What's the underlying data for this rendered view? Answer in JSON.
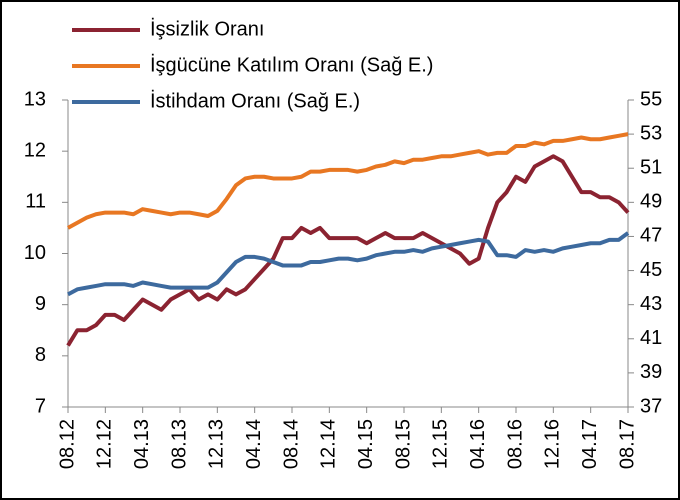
{
  "chart_data": {
    "type": "line",
    "categories": [
      "08.12",
      null,
      null,
      null,
      "12.12",
      null,
      null,
      null,
      "04.13",
      null,
      null,
      null,
      "08.13",
      null,
      null,
      null,
      "12.13",
      null,
      null,
      null,
      "04.14",
      null,
      null,
      null,
      "08.14",
      null,
      null,
      null,
      "12.14",
      null,
      null,
      null,
      "04.15",
      null,
      null,
      null,
      "08.15",
      null,
      null,
      null,
      "12.15",
      null,
      null,
      null,
      "04.16",
      null,
      null,
      null,
      "08.16",
      null,
      null,
      null,
      "12.16",
      null,
      null,
      null,
      "04.17",
      null,
      null,
      null,
      "08.17"
    ],
    "series": [
      {
        "name": "İşsizlik Oranı",
        "color": "#8b2331",
        "values": [
          8.2,
          8.5,
          8.5,
          8.6,
          8.8,
          8.8,
          8.7,
          8.9,
          9.1,
          9.0,
          8.9,
          9.1,
          9.2,
          9.3,
          9.1,
          9.2,
          9.1,
          9.3,
          9.2,
          9.3,
          9.5,
          9.7,
          9.9,
          10.3,
          10.3,
          10.5,
          10.4,
          10.5,
          10.3,
          10.3,
          10.3,
          10.3,
          10.2,
          10.3,
          10.4,
          10.3,
          10.3,
          10.3,
          10.4,
          10.3,
          10.2,
          10.1,
          10.0,
          9.8,
          9.9,
          10.5,
          11.0,
          11.2,
          11.5,
          11.4,
          11.7,
          11.8,
          11.9,
          11.8,
          11.5,
          11.2,
          11.2,
          11.1,
          11.1,
          11.0,
          10.8
        ]
      },
      {
        "name": "İşgücüne Katılım Oranı (Sağ E.)",
        "color": "#e87722",
        "axis": "y2",
        "values": [
          47.5,
          47.8,
          48.1,
          48.3,
          48.4,
          48.4,
          48.4,
          48.3,
          48.6,
          48.5,
          48.4,
          48.3,
          48.4,
          48.4,
          48.3,
          48.2,
          48.5,
          49.2,
          50.0,
          50.4,
          50.5,
          50.5,
          50.4,
          50.4,
          50.4,
          50.5,
          50.8,
          50.8,
          50.9,
          50.9,
          50.9,
          50.8,
          50.9,
          51.1,
          51.2,
          51.4,
          51.3,
          51.5,
          51.5,
          51.6,
          51.7,
          51.7,
          51.8,
          51.9,
          52.0,
          51.8,
          51.9,
          51.9,
          52.3,
          52.3,
          52.5,
          52.4,
          52.6,
          52.6,
          52.7,
          52.8,
          52.7,
          52.7,
          52.8,
          52.9,
          53.0
        ]
      },
      {
        "name": "İstihdam Oranı (Sağ E.)",
        "color": "#3d6a9e",
        "axis": "y2",
        "values": [
          43.6,
          43.9,
          44.0,
          44.1,
          44.2,
          44.2,
          44.2,
          44.1,
          44.3,
          44.2,
          44.1,
          44.0,
          44.0,
          44.0,
          44.0,
          44.0,
          44.3,
          44.9,
          45.5,
          45.8,
          45.8,
          45.7,
          45.5,
          45.3,
          45.3,
          45.3,
          45.5,
          45.5,
          45.6,
          45.7,
          45.7,
          45.6,
          45.7,
          45.9,
          46.0,
          46.1,
          46.1,
          46.2,
          46.1,
          46.3,
          46.4,
          46.5,
          46.6,
          46.7,
          46.8,
          46.7,
          45.9,
          45.9,
          45.8,
          46.2,
          46.1,
          46.2,
          46.1,
          46.3,
          46.4,
          46.5,
          46.6,
          46.6,
          46.8,
          46.8,
          47.2
        ]
      }
    ],
    "ylim": [
      7,
      13
    ],
    "yticks": [
      7,
      8,
      9,
      10,
      11,
      12,
      13
    ],
    "y2lim": [
      37,
      55
    ],
    "y2ticks": [
      37,
      39,
      41,
      43,
      45,
      47,
      49,
      51,
      53,
      55
    ],
    "legend": "top-left",
    "grid": false
  }
}
